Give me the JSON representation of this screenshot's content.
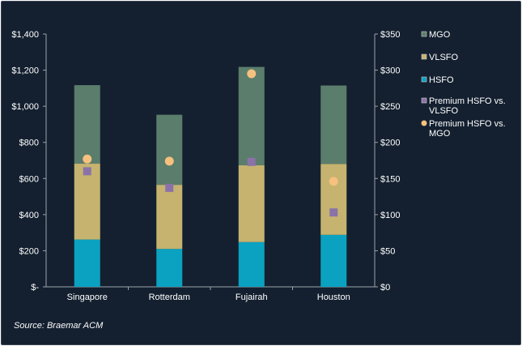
{
  "chart_data": {
    "type": "bar",
    "stacked": true,
    "categories": [
      "Singapore",
      "Rotterdam",
      "Fujairah",
      "Houston"
    ],
    "series": [
      {
        "name": "HSFO",
        "axis": "left",
        "kind": "bar",
        "color": "#0aa2c0",
        "values": [
          262,
          210,
          248,
          288
        ]
      },
      {
        "name": "VLSFO",
        "axis": "left",
        "kind": "bar",
        "color": "#c5b36f",
        "values": [
          420,
          355,
          425,
          393
        ]
      },
      {
        "name": "MGO",
        "axis": "left",
        "kind": "bar",
        "color": "#5b7d6b",
        "values": [
          435,
          388,
          545,
          434
        ]
      },
      {
        "name": "Premium HSFO vs. VLSFO",
        "axis": "right",
        "kind": "marker",
        "marker": "square",
        "color": "#8a72a8",
        "values": [
          160,
          137,
          173,
          103
        ]
      },
      {
        "name": "Premium HSFO vs. MGO",
        "axis": "right",
        "kind": "marker",
        "marker": "circle",
        "color": "#f6c07f",
        "values": [
          177,
          174,
          295,
          146
        ]
      }
    ],
    "left_axis": {
      "ylim": [
        0,
        1400
      ],
      "ticks": [
        0,
        200,
        400,
        600,
        800,
        1000,
        1200,
        1400
      ],
      "tick_labels": [
        "$-",
        "$200",
        "$400",
        "$600",
        "$800",
        "$1,000",
        "$1,200",
        "$1,400"
      ]
    },
    "right_axis": {
      "ylim": [
        0,
        350
      ],
      "ticks": [
        0,
        50,
        100,
        150,
        200,
        250,
        300,
        350
      ],
      "tick_labels": [
        "$0",
        "$50",
        "$100",
        "$150",
        "$200",
        "$250",
        "$300",
        "$350"
      ]
    },
    "legend": {
      "placement": "right",
      "entries": [
        {
          "lines": [
            "MGO"
          ],
          "color": "#5b7d6b",
          "marker": "square"
        },
        {
          "lines": [
            "VLSFO"
          ],
          "color": "#c5b36f",
          "marker": "square"
        },
        {
          "lines": [
            "HSFO"
          ],
          "color": "#0aa2c0",
          "marker": "square"
        },
        {
          "lines": [
            "Premium HSFO vs.",
            "VLSFO"
          ],
          "color": "#8a72a8",
          "marker": "square"
        },
        {
          "lines": [
            "Premium HSFO vs.",
            "MGO"
          ],
          "color": "#f6c07f",
          "marker": "circle"
        }
      ]
    },
    "grid": false,
    "source": "Source: Braemar ACM"
  },
  "colors": {
    "background": "#142030",
    "axis_line": "#9aa3ad",
    "text": "#ffffff"
  }
}
